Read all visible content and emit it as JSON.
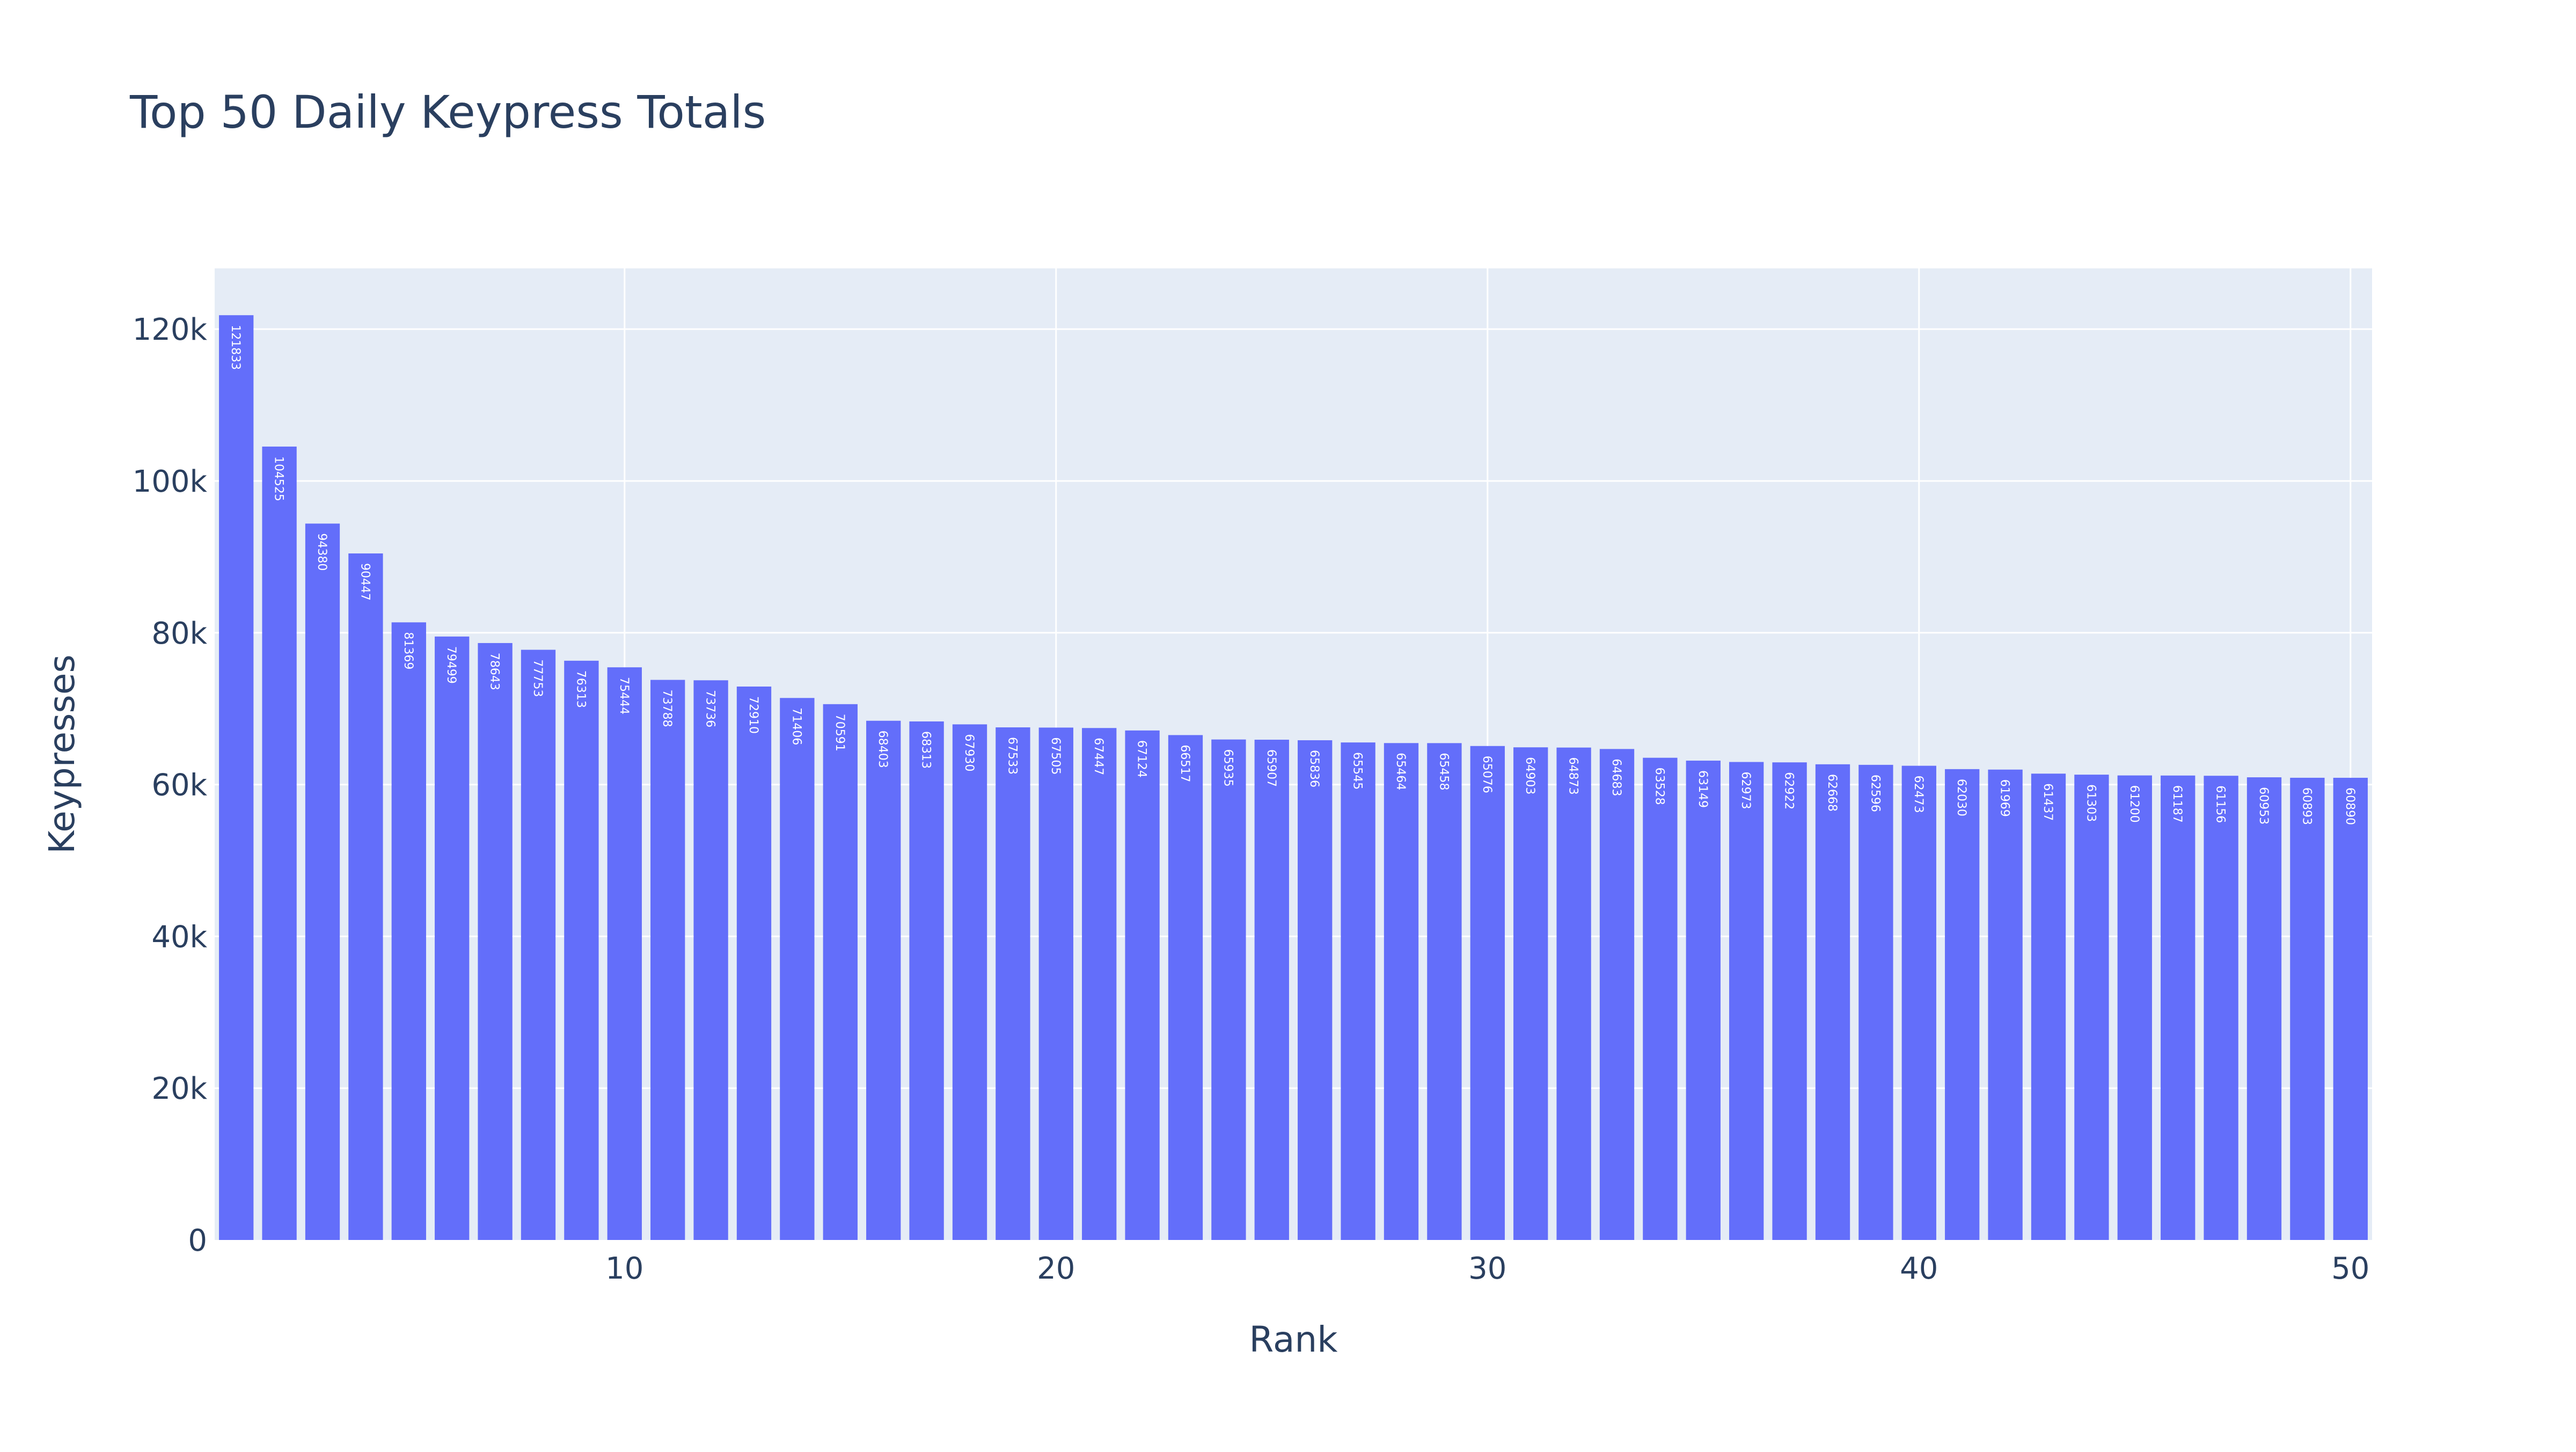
{
  "chart_data": {
    "type": "bar",
    "title": "Top 50 Daily Keypress Totals",
    "xlabel": "Rank",
    "ylabel": "Keypresses",
    "xlim": [
      0.5,
      50.5
    ],
    "ylim": [
      0,
      128000
    ],
    "x_ticks": [
      10,
      20,
      30,
      40,
      50
    ],
    "x_tick_labels": [
      "10",
      "20",
      "30",
      "40",
      "50"
    ],
    "y_ticks": [
      0,
      20000,
      40000,
      60000,
      80000,
      100000,
      120000
    ],
    "y_tick_labels": [
      "0",
      "20k",
      "40k",
      "60k",
      "80k",
      "100k",
      "120k"
    ],
    "grid": true,
    "legend": false,
    "bar_color": "#636efa",
    "plot_background": "#e5ecf6",
    "x": [
      1,
      2,
      3,
      4,
      5,
      6,
      7,
      8,
      9,
      10,
      11,
      12,
      13,
      14,
      15,
      16,
      17,
      18,
      19,
      20,
      21,
      22,
      23,
      24,
      25,
      26,
      27,
      28,
      29,
      30,
      31,
      32,
      33,
      34,
      35,
      36,
      37,
      38,
      39,
      40,
      41,
      42,
      43,
      44,
      45,
      46,
      47,
      48,
      49,
      50
    ],
    "values": [
      121833,
      104525,
      94380,
      90447,
      81369,
      79499,
      78643,
      77753,
      76313,
      75444,
      73788,
      73736,
      72910,
      71406,
      70591,
      68403,
      68313,
      67930,
      67533,
      67505,
      67447,
      67124,
      66517,
      65935,
      65907,
      65836,
      65545,
      65464,
      65458,
      65076,
      64903,
      64873,
      64683,
      63528,
      63149,
      62973,
      62922,
      62668,
      62596,
      62473,
      62030,
      61969,
      61437,
      61303,
      61200,
      61187,
      61156,
      60953,
      60893,
      60890
    ],
    "data_labels": [
      "121833",
      "104525",
      "94380",
      "90447",
      "81369",
      "79499",
      "78643",
      "77753",
      "76313",
      "75444",
      "73788",
      "73736",
      "72910",
      "71406",
      "70591",
      "68403",
      "68313",
      "67930",
      "67533",
      "67505",
      "67447",
      "67124",
      "66517",
      "65935",
      "65907",
      "65836",
      "65545",
      "65464",
      "65458",
      "65076",
      "64903",
      "64873",
      "64683",
      "63528",
      "63149",
      "62973",
      "62922",
      "62668",
      "62596",
      "62473",
      "62030",
      "61969",
      "61437",
      "61303",
      "61200",
      "61187",
      "61156",
      "60953",
      "60893",
      "60890"
    ]
  }
}
